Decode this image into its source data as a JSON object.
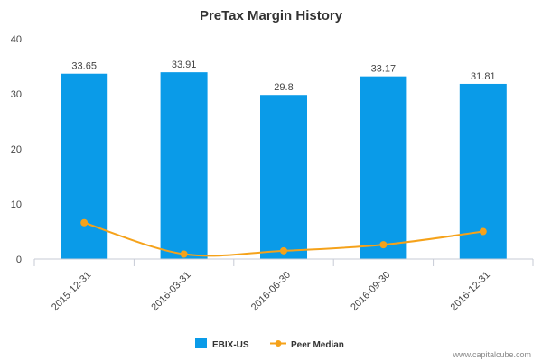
{
  "chart_data": {
    "type": "bar",
    "title": "PreTax Margin History",
    "categories": [
      "2015-12-31",
      "2016-03-31",
      "2016-06-30",
      "2016-09-30",
      "2016-12-31"
    ],
    "series": [
      {
        "name": "EBIX-US",
        "type": "bar",
        "color": "#0a9be8",
        "values": [
          33.65,
          33.91,
          29.8,
          33.17,
          31.81
        ],
        "labels": [
          "33.65",
          "33.91",
          "29.8",
          "33.17",
          "31.81"
        ]
      },
      {
        "name": "Peer Median",
        "type": "line",
        "color": "#f5a21a",
        "values": [
          6.6,
          0.9,
          1.5,
          2.6,
          5.0
        ]
      }
    ],
    "yticks": [
      "0",
      "10",
      "20",
      "30",
      "40"
    ],
    "ylim": [
      0,
      40
    ],
    "xlabel": "",
    "ylabel": "",
    "grid": false,
    "legend": "bottom-center"
  },
  "credit": "www.capitalcube.com"
}
